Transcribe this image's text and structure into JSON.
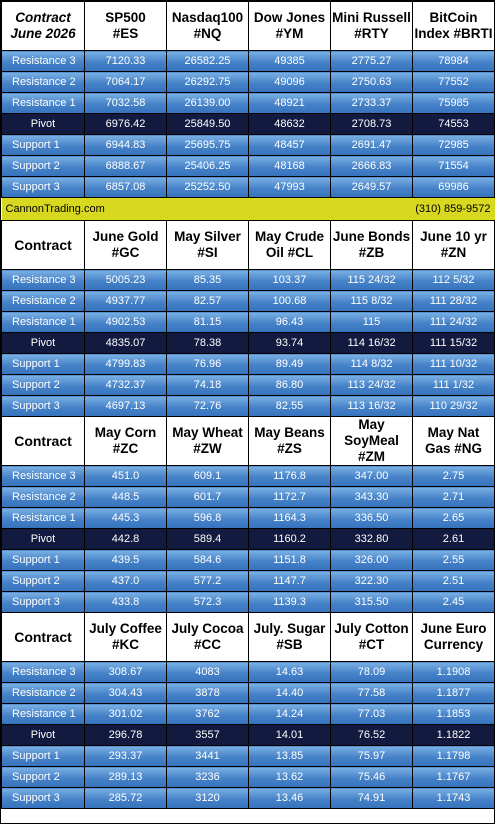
{
  "sections": [
    {
      "header": {
        "corner": [
          "Contract",
          "June 2026"
        ],
        "columns": [
          [
            "SP500",
            "#ES"
          ],
          [
            "Nasdaq100",
            "#NQ"
          ],
          [
            "Dow Jones",
            "#YM"
          ],
          [
            "Mini Russell",
            "#RTY"
          ],
          [
            "BitCoin",
            "Index #BRTI"
          ]
        ]
      },
      "rows": [
        {
          "label": "Resistance 3",
          "values": [
            "7120.33",
            "26582.25",
            "49385",
            "2775.27",
            "78984"
          ]
        },
        {
          "label": "Resistance 2",
          "values": [
            "7064.17",
            "26292.75",
            "49096",
            "2750.63",
            "77552"
          ]
        },
        {
          "label": "Resistance 1",
          "values": [
            "7032.58",
            "26139.00",
            "48921",
            "2733.37",
            "75985"
          ]
        },
        {
          "label": "Pivot",
          "values": [
            "6976.42",
            "25849.50",
            "48632",
            "2708.73",
            "74553"
          ]
        },
        {
          "label": "Support 1",
          "values": [
            "6944.83",
            "25695.75",
            "48457",
            "2691.47",
            "72985"
          ]
        },
        {
          "label": "Support 2",
          "values": [
            "6888.67",
            "25406.25",
            "48168",
            "2666.83",
            "71554"
          ]
        },
        {
          "label": "Support 3",
          "values": [
            "6857.08",
            "25252.50",
            "47993",
            "2649.57",
            "69986"
          ]
        }
      ]
    },
    {
      "header": {
        "corner": [
          "Contract"
        ],
        "columns": [
          [
            "June Gold",
            "#GC"
          ],
          [
            "May Silver",
            "#SI"
          ],
          [
            "May Crude",
            "Oil #CL"
          ],
          [
            "June Bonds",
            "#ZB"
          ],
          [
            "June 10 yr",
            "#ZN"
          ]
        ]
      },
      "rows": [
        {
          "label": "Resistance 3",
          "values": [
            "5005.23",
            "85.35",
            "103.37",
            "115 24/32",
            "112  5/32"
          ]
        },
        {
          "label": "Resistance 2",
          "values": [
            "4937.77",
            "82.57",
            "100.68",
            "115  8/32",
            "111 28/32"
          ]
        },
        {
          "label": "Resistance 1",
          "values": [
            "4902.53",
            "81.15",
            "96.43",
            "115",
            "111 24/32"
          ]
        },
        {
          "label": "Pivot",
          "values": [
            "4835.07",
            "78.38",
            "93.74",
            "114 16/32",
            "111 15/32"
          ]
        },
        {
          "label": "Support 1",
          "values": [
            "4799.83",
            "76.96",
            "89.49",
            "114  8/32",
            "111 10/32"
          ]
        },
        {
          "label": "Support 2",
          "values": [
            "4732.37",
            "74.18",
            "86.80",
            "113 24/32",
            "111  1/32"
          ]
        },
        {
          "label": "Support 3",
          "values": [
            "4697.13",
            "72.76",
            "82.55",
            "113 16/32",
            "110 29/32"
          ]
        }
      ]
    },
    {
      "header": {
        "corner": [
          "Contract"
        ],
        "columns": [
          [
            "May Corn",
            "#ZC"
          ],
          [
            "May  Wheat",
            "#ZW"
          ],
          [
            "May Beans",
            "#ZS"
          ],
          [
            "May",
            "SoyMeal",
            "#ZM"
          ],
          [
            "May Nat",
            "Gas #NG"
          ]
        ]
      },
      "rows": [
        {
          "label": "Resistance 3",
          "values": [
            "451.0",
            "609.1",
            "1176.8",
            "347.00",
            "2.75"
          ]
        },
        {
          "label": "Resistance 2",
          "values": [
            "448.5",
            "601.7",
            "1172.7",
            "343.30",
            "2.71"
          ]
        },
        {
          "label": "Resistance 1",
          "values": [
            "445.3",
            "596.8",
            "1164.3",
            "336.50",
            "2.65"
          ]
        },
        {
          "label": "Pivot",
          "values": [
            "442.8",
            "589.4",
            "1160.2",
            "332.80",
            "2.61"
          ]
        },
        {
          "label": "Support 1",
          "values": [
            "439.5",
            "584.6",
            "1151.8",
            "326.00",
            "2.55"
          ]
        },
        {
          "label": "Support 2",
          "values": [
            "437.0",
            "577.2",
            "1147.7",
            "322.30",
            "2.51"
          ]
        },
        {
          "label": "Support 3",
          "values": [
            "433.8",
            "572.3",
            "1139.3",
            "315.50",
            "2.45"
          ]
        }
      ]
    },
    {
      "header": {
        "corner": [
          "Contract"
        ],
        "columns": [
          [
            "July Coffee",
            "#KC"
          ],
          [
            "July Cocoa",
            "#CC"
          ],
          [
            "July. Sugar",
            "#SB"
          ],
          [
            "July Cotton",
            "#CT"
          ],
          [
            "June Euro",
            "Currency"
          ]
        ]
      },
      "rows": [
        {
          "label": "Resistance 3",
          "values": [
            "308.67",
            "4083",
            "14.63",
            "78.09",
            "1.1908"
          ]
        },
        {
          "label": "Resistance 2",
          "values": [
            "304.43",
            "3878",
            "14.40",
            "77.58",
            "1.1877"
          ]
        },
        {
          "label": "Resistance 1",
          "values": [
            "301.02",
            "3762",
            "14.24",
            "77.03",
            "1.1853"
          ]
        },
        {
          "label": "Pivot",
          "values": [
            "296.78",
            "3557",
            "14.01",
            "76.52",
            "1.1822"
          ]
        },
        {
          "label": "Support 1",
          "values": [
            "293.37",
            "3441",
            "13.85",
            "75.97",
            "1.1798"
          ]
        },
        {
          "label": "Support 2",
          "values": [
            "289.13",
            "3236",
            "13.62",
            "75.46",
            "1.1767"
          ]
        },
        {
          "label": "Support 3",
          "values": [
            "285.72",
            "3120",
            "13.46",
            "74.91",
            "1.1743"
          ]
        }
      ]
    }
  ],
  "banner": {
    "left": "CannonTrading.com",
    "right": "(310) 859-9572"
  },
  "colors": {
    "row_gradient_top": "#7ab0e4",
    "row_gradient_bottom": "#3572bc",
    "pivot_row": "#131a40",
    "banner": "#d8d820"
  }
}
